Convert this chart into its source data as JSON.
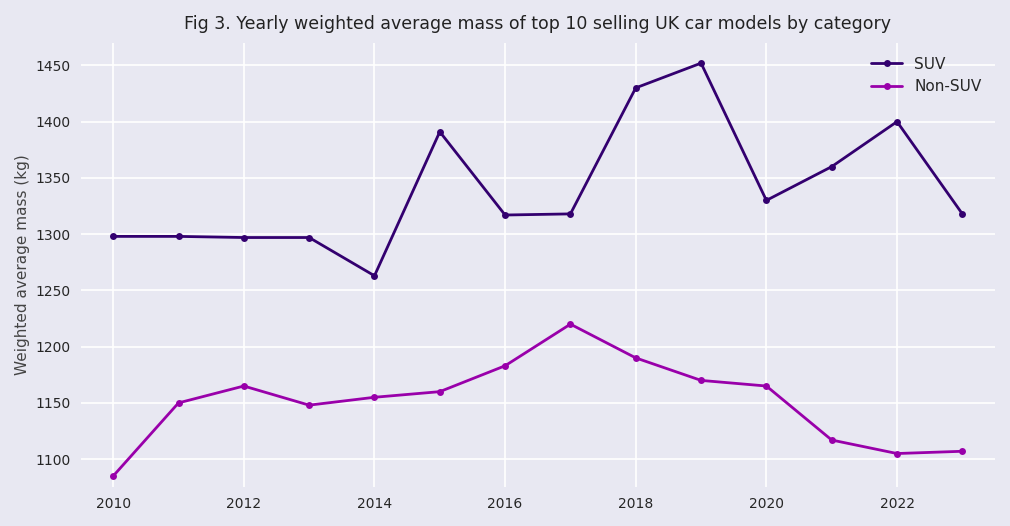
{
  "title": "Fig 3. Yearly weighted average mass of top 10 selling UK car models by category",
  "ylabel": "Weighted average mass (kg)",
  "xlabel": "",
  "suv": {
    "label": "SUV",
    "years": [
      2010,
      2011,
      2012,
      2013,
      2014,
      2015,
      2016,
      2017,
      2018,
      2019,
      2020,
      2021,
      2022,
      2023
    ],
    "values": [
      1298,
      1298,
      1297,
      1297,
      1263,
      1391,
      1317,
      1318,
      1430,
      1452,
      1330,
      1360,
      1400,
      1318
    ],
    "color": "#33006F",
    "linewidth": 2.0,
    "marker": "o",
    "markersize": 5
  },
  "nonsuv": {
    "label": "Non-SUV",
    "years": [
      2010,
      2011,
      2012,
      2013,
      2014,
      2015,
      2016,
      2017,
      2018,
      2019,
      2020,
      2021,
      2022,
      2023
    ],
    "values": [
      1085,
      1150,
      1165,
      1148,
      1155,
      1160,
      1183,
      1220,
      1190,
      1170,
      1165,
      1117,
      1105,
      1107
    ],
    "color": "#9900AA",
    "linewidth": 2.0,
    "marker": "o",
    "markersize": 5
  },
  "background_color": "#E8E8F2",
  "grid_color": "#FFFFFF",
  "ylim": [
    1075,
    1470
  ],
  "xlim": [
    2009.5,
    2023.5
  ],
  "xticks": [
    2010,
    2012,
    2014,
    2016,
    2018,
    2020,
    2022
  ],
  "yticks": [
    1100,
    1150,
    1200,
    1250,
    1300,
    1350,
    1400,
    1450
  ],
  "title_fontsize": 12.5,
  "label_fontsize": 11,
  "tick_fontsize": 10,
  "legend_loc": "upper right",
  "figsize": [
    10.1,
    5.26
  ],
  "dpi": 100
}
